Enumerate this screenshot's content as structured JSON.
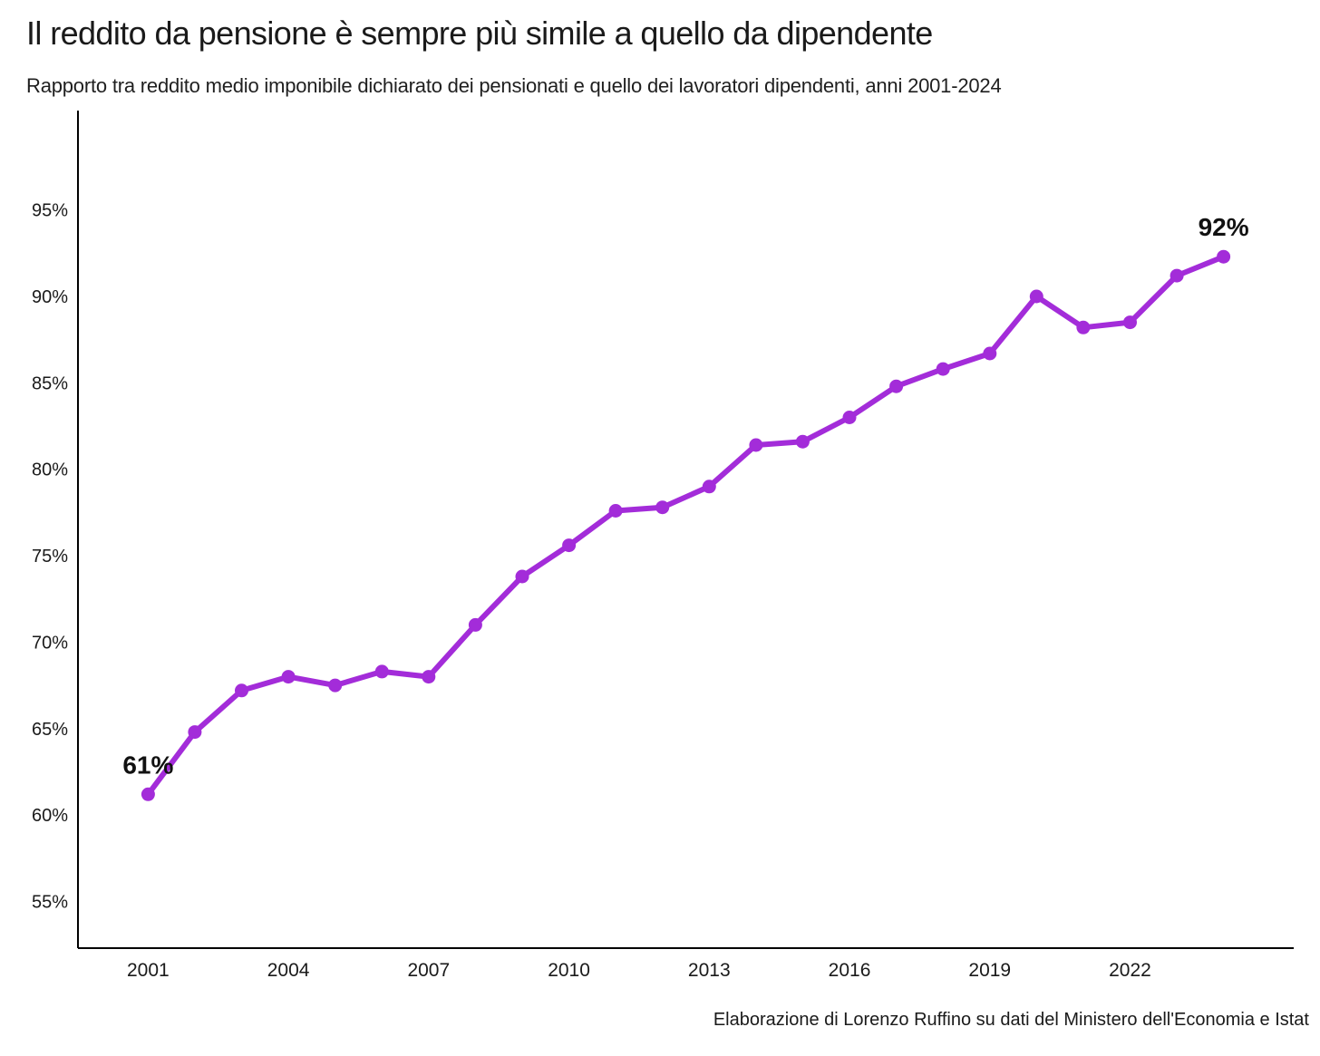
{
  "header": {
    "title": "Il reddito da pensione è sempre più simile a quello da dipendente",
    "subtitle": "Rapporto tra reddito medio imponibile dichiarato dei pensionati e quello dei lavoratori dipendenti, anni 2001-2024"
  },
  "footer": {
    "credit": "Elaborazione di Lorenzo Ruffino su dati del Ministero dell'Economia e Istat"
  },
  "chart_data": {
    "type": "line",
    "title": "Il reddito da pensione è sempre più simile a quello da dipendente",
    "xlabel": "",
    "ylabel": "",
    "x": [
      2001,
      2002,
      2003,
      2004,
      2005,
      2006,
      2007,
      2008,
      2009,
      2010,
      2011,
      2012,
      2013,
      2014,
      2015,
      2016,
      2017,
      2018,
      2019,
      2020,
      2021,
      2022,
      2023,
      2024
    ],
    "values": [
      61.2,
      64.8,
      67.2,
      68.0,
      67.5,
      68.3,
      68.0,
      71.0,
      73.8,
      75.6,
      77.6,
      77.8,
      79.0,
      81.4,
      81.6,
      83.0,
      84.8,
      85.8,
      86.7,
      90.0,
      88.2,
      88.5,
      91.2,
      92.3
    ],
    "xlim": [
      1999.5,
      2025.5
    ],
    "ylim": [
      52.3,
      100.75
    ],
    "yticks": [
      {
        "v": 55,
        "label": "55%"
      },
      {
        "v": 60,
        "label": "60%"
      },
      {
        "v": 65,
        "label": "65%"
      },
      {
        "v": 70,
        "label": "70%"
      },
      {
        "v": 75,
        "label": "75%"
      },
      {
        "v": 80,
        "label": "80%"
      },
      {
        "v": 85,
        "label": "85%"
      },
      {
        "v": 90,
        "label": "90%"
      },
      {
        "v": 95,
        "label": "95%"
      }
    ],
    "xticks": [
      {
        "v": 2001,
        "label": "2001"
      },
      {
        "v": 2004,
        "label": "2004"
      },
      {
        "v": 2007,
        "label": "2007"
      },
      {
        "v": 2010,
        "label": "2010"
      },
      {
        "v": 2013,
        "label": "2013"
      },
      {
        "v": 2016,
        "label": "2016"
      },
      {
        "v": 2019,
        "label": "2019"
      },
      {
        "v": 2022,
        "label": "2022"
      }
    ],
    "annotations": [
      {
        "x": 2001,
        "y": 61.2,
        "label": "61%"
      },
      {
        "x": 2024,
        "y": 92.3,
        "label": "92%"
      }
    ],
    "line_color": "#a32cd9",
    "axis_color": "#000000",
    "tick_color": "#1a1a1a",
    "annotation_color": "#111111",
    "grid": false,
    "legend": null
  }
}
